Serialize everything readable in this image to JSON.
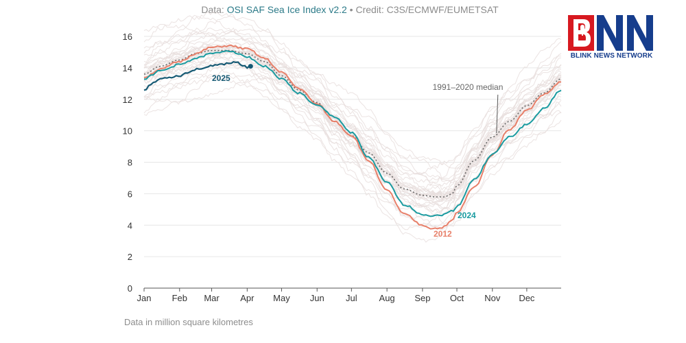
{
  "credit": {
    "prefix": "Data: ",
    "source": "OSI SAF Sea Ice Index v2.2",
    "separator": " • ",
    "credit_text": "Credit: C3S/ECMWF/EUMETSAT"
  },
  "footnote": "Data in million square kilometres",
  "logo": {
    "letters": "BNN",
    "tagline": "BLINK NEWS NETWORK",
    "colors": {
      "red": "#d71920",
      "blue": "#163d8c"
    }
  },
  "chart_data": {
    "type": "line",
    "x_unit": "day of year",
    "xlim": [
      1,
      365
    ],
    "ylim": [
      0,
      16
    ],
    "yticks": [
      0,
      2,
      4,
      6,
      8,
      10,
      12,
      14,
      16
    ],
    "grid": true,
    "month_ticks": [
      {
        "label": "Jan",
        "day": 1
      },
      {
        "label": "Feb",
        "day": 32
      },
      {
        "label": "Mar",
        "day": 60
      },
      {
        "label": "Apr",
        "day": 91
      },
      {
        "label": "May",
        "day": 121
      },
      {
        "label": "Jun",
        "day": 152
      },
      {
        "label": "Jul",
        "day": 182
      },
      {
        "label": "Aug",
        "day": 213
      },
      {
        "label": "Sep",
        "day": 244
      },
      {
        "label": "Oct",
        "day": 274
      },
      {
        "label": "Nov",
        "day": 305
      },
      {
        "label": "Dec",
        "day": 335
      }
    ],
    "series": [
      {
        "name": "1991–2020 median",
        "style": "dotted",
        "color": "#666666",
        "x": [
          1,
          15,
          32,
          46,
          60,
          75,
          91,
          106,
          121,
          136,
          152,
          167,
          182,
          197,
          213,
          228,
          244,
          255,
          263,
          270,
          274,
          289,
          305,
          320,
          335,
          350,
          365
        ],
        "y": [
          13.6,
          14.1,
          14.5,
          14.9,
          15.1,
          15.1,
          14.9,
          14.4,
          13.5,
          12.6,
          11.8,
          10.6,
          9.7,
          8.6,
          7.3,
          6.3,
          5.9,
          5.8,
          5.8,
          6.0,
          6.5,
          8.1,
          9.6,
          10.6,
          11.6,
          12.4,
          13.3
        ]
      },
      {
        "name": "2012",
        "color": "#e8806a",
        "x": [
          1,
          15,
          32,
          46,
          60,
          75,
          91,
          106,
          121,
          136,
          152,
          167,
          182,
          197,
          213,
          228,
          244,
          252,
          258,
          263,
          270,
          274,
          289,
          305,
          320,
          335,
          350,
          365
        ],
        "y": [
          13.4,
          13.9,
          14.4,
          14.9,
          15.3,
          15.4,
          15.2,
          14.6,
          13.7,
          12.7,
          11.7,
          10.6,
          9.7,
          8.1,
          6.2,
          4.7,
          4.0,
          3.8,
          3.8,
          3.9,
          4.3,
          4.8,
          6.4,
          8.5,
          10.1,
          11.3,
          12.3,
          13.1
        ]
      },
      {
        "name": "2024",
        "color": "#1a9ba0",
        "x": [
          1,
          15,
          32,
          46,
          60,
          75,
          91,
          106,
          121,
          136,
          152,
          167,
          182,
          197,
          213,
          228,
          244,
          252,
          258,
          263,
          270,
          274,
          289,
          305,
          320,
          335,
          350,
          365
        ],
        "y": [
          13.3,
          13.8,
          14.2,
          14.6,
          14.9,
          15.1,
          14.7,
          14.1,
          13.3,
          12.4,
          11.6,
          10.9,
          9.9,
          8.3,
          6.7,
          5.3,
          4.7,
          4.6,
          4.6,
          4.7,
          4.9,
          5.2,
          6.9,
          8.5,
          9.6,
          10.4,
          11.4,
          12.6
        ]
      },
      {
        "name": "2025",
        "color": "#165a74",
        "x": [
          1,
          8,
          15,
          22,
          32,
          39,
          46,
          53,
          60,
          67,
          75,
          82,
          88,
          91,
          94
        ],
        "y": [
          12.6,
          13.0,
          13.3,
          13.4,
          13.5,
          13.7,
          13.9,
          14.0,
          14.1,
          14.2,
          14.3,
          14.4,
          14.1,
          14.0,
          14.1
        ]
      }
    ],
    "annotations": [
      {
        "text": "1991–2020 median",
        "target_series": "1991–2020 median",
        "target_day": 305
      }
    ]
  }
}
